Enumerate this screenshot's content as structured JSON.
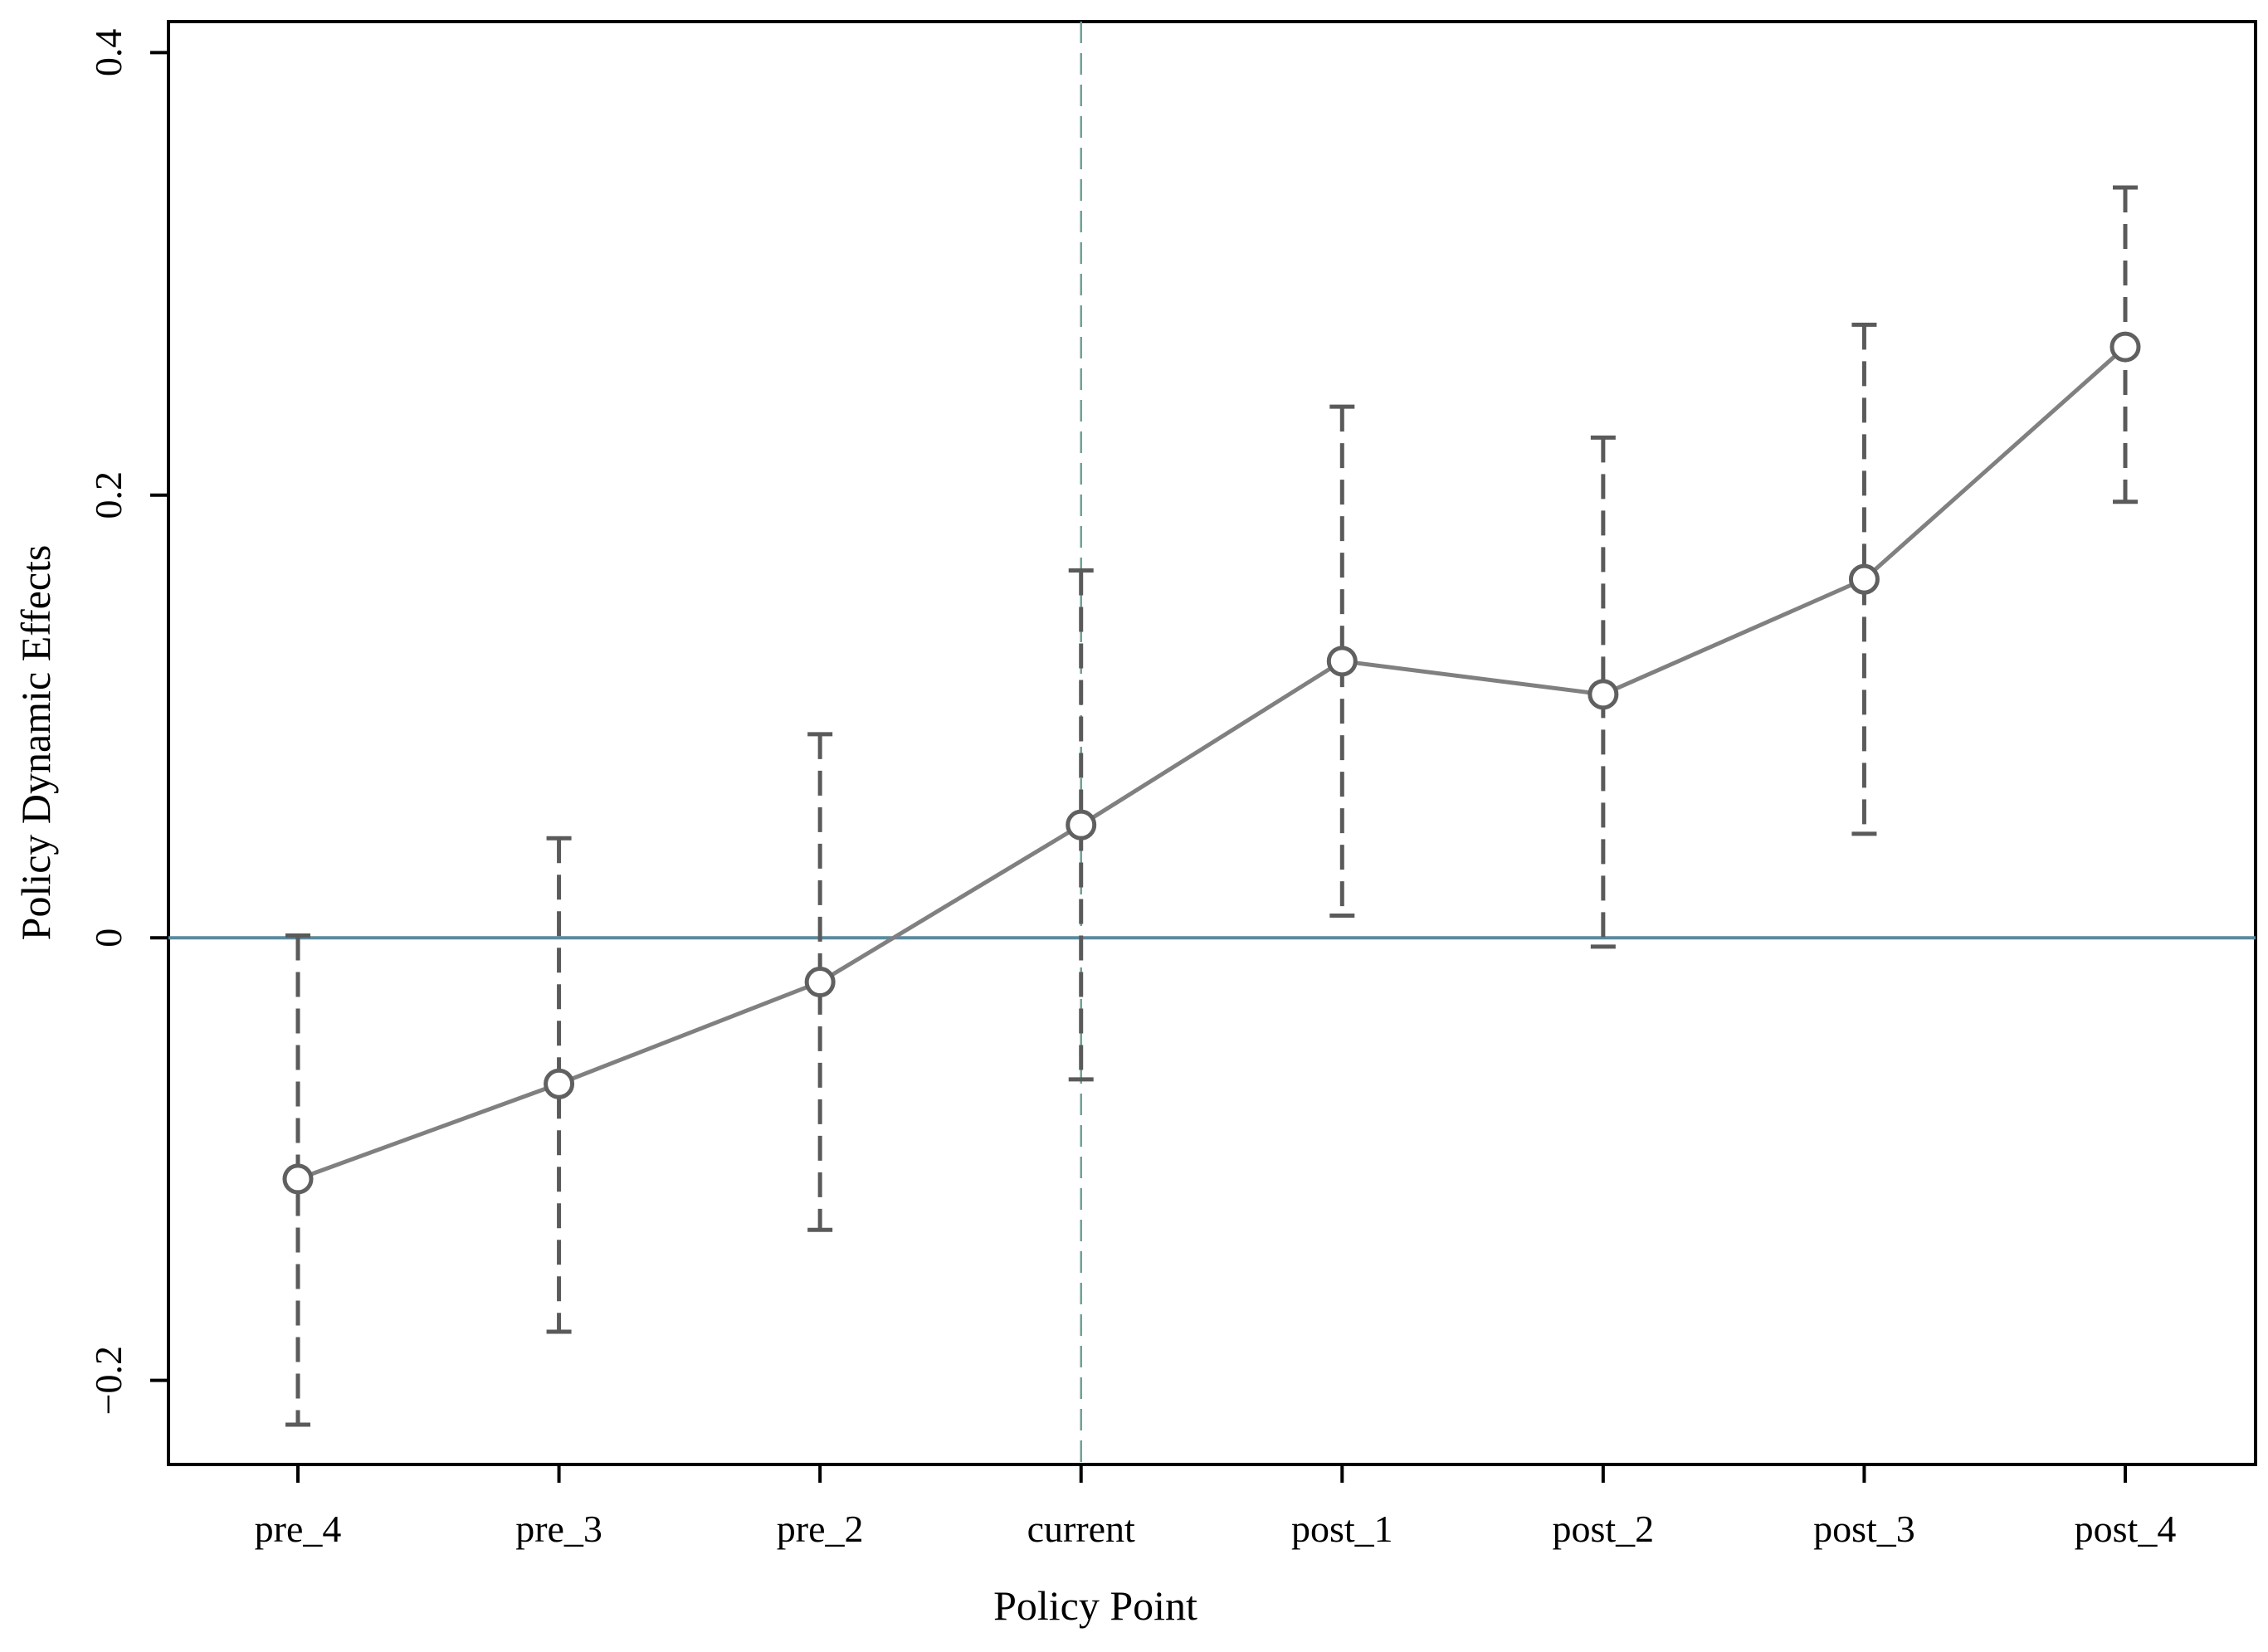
{
  "chart_data": {
    "type": "line",
    "title": "",
    "xlabel": "Policy Point",
    "ylabel": "Policy Dynamic Effects",
    "categories": [
      "pre_4",
      "pre_3",
      "pre_2",
      "current",
      "post_1",
      "post_2",
      "post_3",
      "post_4"
    ],
    "series": [
      {
        "values": [
          -0.109,
          -0.066,
          -0.02,
          0.051,
          0.125,
          0.11,
          0.162,
          0.267
        ],
        "ci_lower": [
          -0.22,
          -0.178,
          -0.132,
          -0.064,
          0.01,
          -0.004,
          0.047,
          0.197
        ],
        "ci_upper": [
          0.001,
          0.045,
          0.092,
          0.166,
          0.24,
          0.226,
          0.277,
          0.339
        ]
      }
    ],
    "ylim": [
      -0.238,
      0.414
    ],
    "yticks": [
      -0.2,
      0,
      0.2,
      0.4
    ],
    "ytick_labels": [
      "−0.2",
      "0",
      "0.2",
      "0.4"
    ],
    "reference_lines": {
      "horizontal_at": 0,
      "vertical_at_category": "current"
    },
    "grid": false,
    "legend": "none",
    "colors": {
      "line": "#808080",
      "markers": "#606060",
      "error_bars": "#5a5a5a",
      "zero_line": "#5b8a9e",
      "vertical_line": "#6f9e96",
      "axes": "#000000"
    }
  }
}
